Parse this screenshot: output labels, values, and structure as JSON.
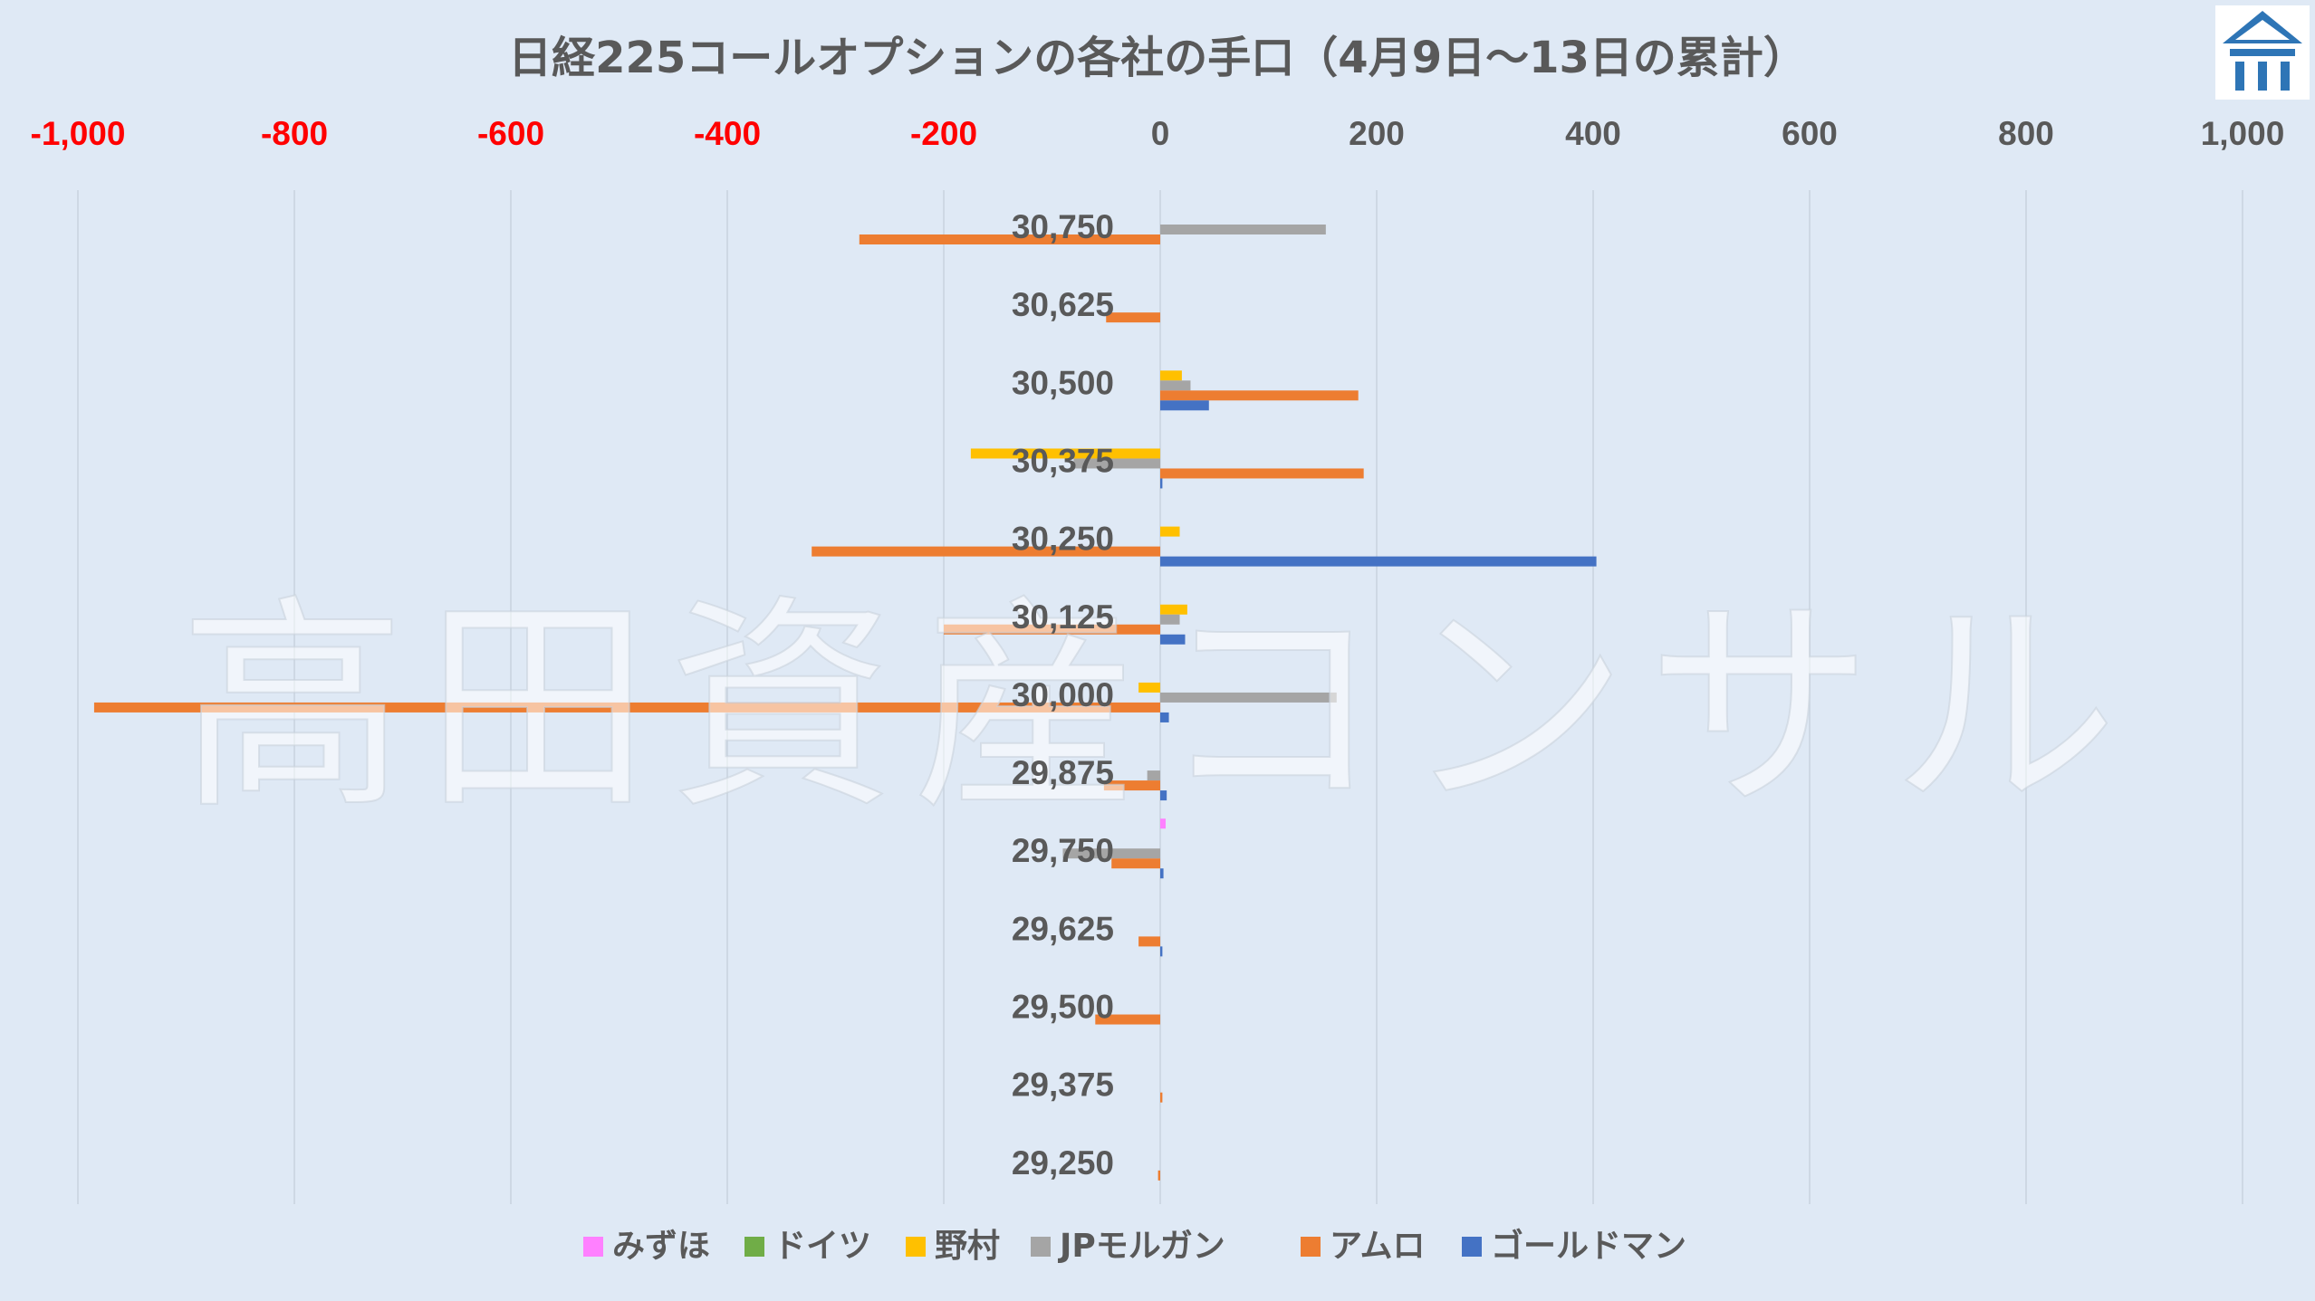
{
  "chart_data": {
    "type": "bar",
    "orientation": "horizontal",
    "title": "日経225コールオプションの各社の手口（4月9日～13日の累計）",
    "categories": [
      "30,750",
      "30,625",
      "30,500",
      "30,375",
      "30,250",
      "30,125",
      "30,000",
      "29,875",
      "29,750",
      "29,625",
      "29,500",
      "29,375",
      "29,250"
    ],
    "series": [
      {
        "name": "みずほ",
        "color": "#ff80ff",
        "values": [
          0,
          0,
          0,
          0,
          0,
          0,
          0,
          0,
          5,
          0,
          0,
          0,
          0
        ]
      },
      {
        "name": "ドイツ",
        "color": "#70ad47",
        "values": [
          0,
          0,
          0,
          0,
          0,
          0,
          0,
          0,
          0,
          0,
          0,
          0,
          0
        ]
      },
      {
        "name": "野村",
        "color": "#ffc000",
        "values": [
          0,
          0,
          20,
          -175,
          18,
          25,
          -20,
          0,
          0,
          0,
          0,
          0,
          0
        ]
      },
      {
        "name": "JPモルガン",
        "color": "#a5a5a5",
        "values": [
          153,
          0,
          28,
          -80,
          0,
          18,
          163,
          -12,
          -90,
          0,
          0,
          0,
          0
        ]
      },
      {
        "name": "アムロ",
        "color": "#ed7d31",
        "values": [
          -278,
          -50,
          183,
          188,
          -322,
          -200,
          -985,
          -52,
          -45,
          -20,
          -60,
          2,
          -2
        ]
      },
      {
        "name": "ゴールドマン",
        "color": "#4472c4",
        "values": [
          0,
          0,
          45,
          2,
          403,
          23,
          8,
          6,
          3,
          2,
          0,
          0,
          0
        ]
      }
    ],
    "xlim": [
      -1000,
      1000
    ],
    "xticks": [
      "-1,000",
      "-800",
      "-600",
      "-400",
      "-200",
      "0",
      "200",
      "400",
      "600",
      "800",
      "1,000"
    ],
    "xtick_values": [
      -1000,
      -800,
      -600,
      -400,
      -200,
      0,
      200,
      400,
      600,
      800,
      1000
    ],
    "negative_tick_color": "#ff0000",
    "positive_tick_color": "#595959",
    "grid": true,
    "legend_position": "bottom",
    "watermark": "高田資産コンサル"
  }
}
